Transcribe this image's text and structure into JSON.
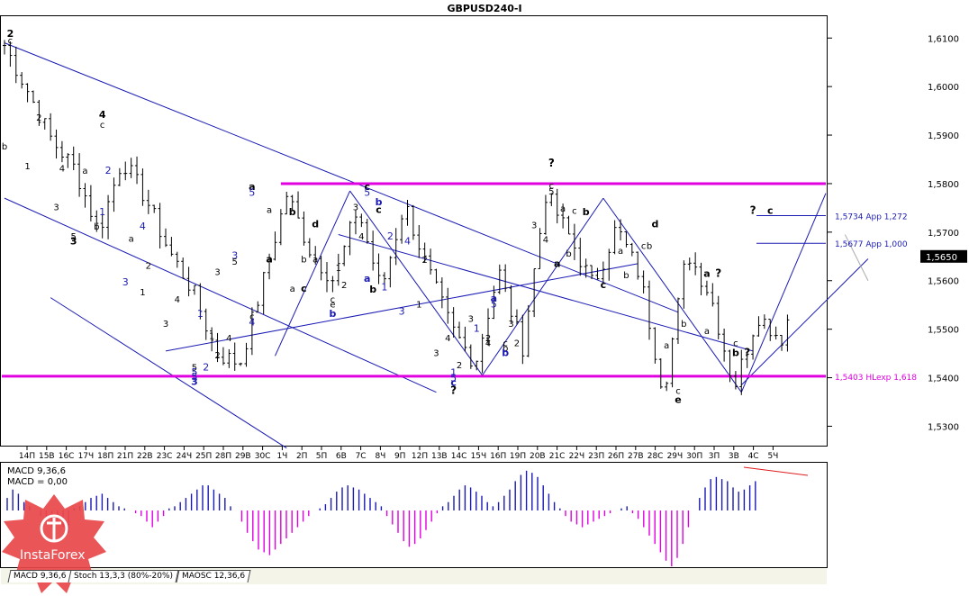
{
  "chart_data": {
    "type": "candlestick",
    "title": "GBPUSD240-I",
    "y_axis": {
      "min": 1.526,
      "max": 1.6145,
      "ticks": [
        "1,6100",
        "1,6000",
        "1,5900",
        "1,5800",
        "1,5700",
        "1,5600",
        "1,5500",
        "1,5400",
        "1,5300"
      ],
      "tick_values": [
        1.61,
        1.6,
        1.59,
        1.58,
        1.57,
        1.56,
        1.55,
        1.54,
        1.53
      ]
    },
    "x_axis": {
      "ticks": [
        "14П",
        "15В",
        "16С",
        "17Ч",
        "18П",
        "21П",
        "22В",
        "23С",
        "24Ч",
        "25П",
        "28П",
        "29В",
        "30С",
        "1Ч",
        "2П",
        "5П",
        "6В",
        "7С",
        "8Ч",
        "9П",
        "12П",
        "13В",
        "14С",
        "15Ч",
        "16П",
        "19П",
        "20В",
        "21С",
        "22Ч",
        "23П",
        "26П",
        "27В",
        "28С",
        "29Ч",
        "30П",
        "3П",
        "3В",
        "4С",
        "5Ч"
      ]
    },
    "current_price": {
      "label": "1,5650",
      "value": 1.565
    },
    "levels": [
      {
        "label": "1,5734 App 1,272",
        "value": 1.5734,
        "color": "#1a1ab4"
      },
      {
        "label": "1,5677 App 1,000",
        "value": 1.5677,
        "color": "#1a1ab4"
      },
      {
        "label": "1,5403 HLexp 1,618",
        "value": 1.5403,
        "color": "#e000e0"
      }
    ],
    "resistance_level": {
      "value": 1.58,
      "color": "#e000e0"
    },
    "price_path": [
      1.6085,
      1.599,
      1.589,
      1.583,
      1.57,
      1.585,
      1.577,
      1.566,
      1.558,
      1.545,
      1.543,
      1.56,
      1.578,
      1.566,
      1.56,
      1.575,
      1.558,
      1.576,
      1.562,
      1.55,
      1.543,
      1.562,
      1.546,
      1.578,
      1.569,
      1.559,
      1.571,
      1.561,
      1.537,
      1.566,
      1.557,
      1.538,
      1.553,
      1.548,
      1.563
    ],
    "wave_labels": [
      {
        "t": "2",
        "i": 1,
        "p": 1.6102,
        "s": "kb"
      },
      {
        "t": "c",
        "i": 1,
        "p": 1.6088,
        "s": "k"
      },
      {
        "t": "b",
        "i": 0,
        "p": 1.587,
        "s": "k"
      },
      {
        "t": "1",
        "i": 4,
        "p": 1.583,
        "s": "k"
      },
      {
        "t": "2",
        "i": 6,
        "p": 1.593,
        "s": "k"
      },
      {
        "t": "4",
        "i": 10,
        "p": 1.5825,
        "s": "k"
      },
      {
        "t": "3",
        "i": 9,
        "p": 1.5745,
        "s": "k"
      },
      {
        "t": "4",
        "i": 17,
        "p": 1.5935,
        "s": "kb"
      },
      {
        "t": "c",
        "i": 17,
        "p": 1.5915,
        "s": "k"
      },
      {
        "t": "a",
        "i": 14,
        "p": 1.582,
        "s": "k"
      },
      {
        "t": "2",
        "i": 18,
        "p": 1.582,
        "s": "b"
      },
      {
        "t": "1",
        "i": 17,
        "p": 1.5735,
        "s": "b"
      },
      {
        "t": "b",
        "i": 16,
        "p": 1.5705,
        "s": "k"
      },
      {
        "t": "5",
        "i": 12,
        "p": 1.5685,
        "s": "k"
      },
      {
        "t": "3",
        "i": 12,
        "p": 1.5675,
        "s": "kb"
      },
      {
        "t": "4",
        "i": 24,
        "p": 1.5705,
        "s": "b"
      },
      {
        "t": "a",
        "i": 22,
        "p": 1.568,
        "s": "k"
      },
      {
        "t": "3",
        "i": 21,
        "p": 1.559,
        "s": "b"
      },
      {
        "t": "1",
        "i": 24,
        "p": 1.557,
        "s": "k"
      },
      {
        "t": "2",
        "i": 25,
        "p": 1.5625,
        "s": "k"
      },
      {
        "t": "4",
        "i": 30,
        "p": 1.5555,
        "s": "k"
      },
      {
        "t": "3",
        "i": 28,
        "p": 1.5505,
        "s": "k"
      },
      {
        "t": "1",
        "i": 34,
        "p": 1.5525,
        "s": "b"
      },
      {
        "t": "1",
        "i": 36,
        "p": 1.548,
        "s": "k"
      },
      {
        "t": "2",
        "i": 37,
        "p": 1.544,
        "s": "k"
      },
      {
        "t": "5",
        "i": 33,
        "p": 1.5415,
        "s": "k"
      },
      {
        "t": "5",
        "i": 33,
        "p": 1.5405,
        "s": "b"
      },
      {
        "t": "2",
        "i": 35,
        "p": 1.5415,
        "s": "b"
      },
      {
        "t": "5",
        "i": 33,
        "p": 1.5395,
        "s": "b"
      },
      {
        "t": "3",
        "i": 33,
        "p": 1.5385,
        "s": "bb"
      },
      {
        "t": "3",
        "i": 37,
        "p": 1.5612,
        "s": "k"
      },
      {
        "t": "4",
        "i": 39,
        "p": 1.5475,
        "s": "k"
      },
      {
        "t": "3",
        "i": 40,
        "p": 1.5645,
        "s": "b"
      },
      {
        "t": "5",
        "i": 40,
        "p": 1.5633,
        "s": "k"
      },
      {
        "t": "c",
        "i": 43,
        "p": 1.552,
        "s": "k"
      },
      {
        "t": "4",
        "i": 43,
        "p": 1.5508,
        "s": "b"
      },
      {
        "t": "a",
        "i": 43,
        "p": 1.5787,
        "s": "kb"
      },
      {
        "t": "5",
        "i": 43,
        "p": 1.5775,
        "s": "b"
      },
      {
        "t": "a",
        "i": 46,
        "p": 1.574,
        "s": "k"
      },
      {
        "t": "b",
        "i": 50,
        "p": 1.5735,
        "s": "kb"
      },
      {
        "t": "d",
        "i": 54,
        "p": 1.571,
        "s": "kb"
      },
      {
        "t": "a",
        "i": 46,
        "p": 1.5638,
        "s": "kb"
      },
      {
        "t": "a",
        "i": 50,
        "p": 1.5577,
        "s": "k"
      },
      {
        "t": "c",
        "i": 52,
        "p": 1.5577,
        "s": "kb"
      },
      {
        "t": "b",
        "i": 52,
        "p": 1.5638,
        "s": "k"
      },
      {
        "t": "a",
        "i": 54,
        "p": 1.5638,
        "s": "k"
      },
      {
        "t": "c",
        "i": 57,
        "p": 1.5555,
        "s": "k"
      },
      {
        "t": "e",
        "i": 57,
        "p": 1.5545,
        "s": "k"
      },
      {
        "t": "b",
        "i": 57,
        "p": 1.5525,
        "s": "bb"
      },
      {
        "t": "1",
        "i": 58,
        "p": 1.562,
        "s": "k"
      },
      {
        "t": "2",
        "i": 59,
        "p": 1.5585,
        "s": "k"
      },
      {
        "t": "c",
        "i": 63,
        "p": 1.5787,
        "s": "kb"
      },
      {
        "t": "5",
        "i": 63,
        "p": 1.5775,
        "s": "b"
      },
      {
        "t": "3",
        "i": 61,
        "p": 1.5745,
        "s": "k"
      },
      {
        "t": "b",
        "i": 65,
        "p": 1.5755,
        "s": "bb"
      },
      {
        "t": "c",
        "i": 65,
        "p": 1.574,
        "s": "kb"
      },
      {
        "t": "4",
        "i": 62,
        "p": 1.5685,
        "s": "k"
      },
      {
        "t": "a",
        "i": 63,
        "p": 1.5598,
        "s": "bb"
      },
      {
        "t": "1",
        "i": 66,
        "p": 1.558,
        "s": "b"
      },
      {
        "t": "b",
        "i": 64,
        "p": 1.5575,
        "s": "kb"
      },
      {
        "t": "2",
        "i": 67,
        "p": 1.5685,
        "s": "b"
      },
      {
        "t": "4",
        "i": 70,
        "p": 1.5675,
        "s": "b"
      },
      {
        "t": "3",
        "i": 69,
        "p": 1.553,
        "s": "b"
      },
      {
        "t": "2",
        "i": 73,
        "p": 1.5637,
        "s": "k"
      },
      {
        "t": "1",
        "i": 72,
        "p": 1.5545,
        "s": "k"
      },
      {
        "t": "4",
        "i": 77,
        "p": 1.5475,
        "s": "k"
      },
      {
        "t": "3",
        "i": 75,
        "p": 1.5445,
        "s": "k"
      },
      {
        "t": "2",
        "i": 79,
        "p": 1.542,
        "s": "k"
      },
      {
        "t": "1",
        "i": 78,
        "p": 1.5404,
        "s": "b"
      },
      {
        "t": "5",
        "i": 78,
        "p": 1.5393,
        "s": "b"
      },
      {
        "t": "c",
        "i": 78,
        "p": 1.5383,
        "s": "bb"
      },
      {
        "t": "?",
        "i": 78,
        "p": 1.5367,
        "s": "q"
      },
      {
        "t": "3",
        "i": 81,
        "p": 1.5515,
        "s": "k"
      },
      {
        "t": "5",
        "i": 85,
        "p": 1.5545,
        "s": "b"
      },
      {
        "t": "a",
        "i": 85,
        "p": 1.5557,
        "s": "bb"
      },
      {
        "t": "1",
        "i": 82,
        "p": 1.5495,
        "s": "b"
      },
      {
        "t": "2",
        "i": 84,
        "p": 1.5475,
        "s": "k"
      },
      {
        "t": "4",
        "i": 84,
        "p": 1.5465,
        "s": "k"
      },
      {
        "t": "b",
        "i": 87,
        "p": 1.5455,
        "s": "k"
      },
      {
        "t": "c",
        "i": 87,
        "p": 1.5465,
        "s": "k"
      },
      {
        "t": "b",
        "i": 87,
        "p": 1.5445,
        "s": "bb"
      },
      {
        "t": "3",
        "i": 88,
        "p": 1.5505,
        "s": "k"
      },
      {
        "t": "2",
        "i": 89,
        "p": 1.5465,
        "s": "k"
      },
      {
        "t": "?",
        "i": 95,
        "p": 1.5835,
        "s": "q"
      },
      {
        "t": "c",
        "i": 95,
        "p": 1.579,
        "s": "k"
      },
      {
        "t": "5",
        "i": 95,
        "p": 1.5778,
        "s": "k"
      },
      {
        "t": "3",
        "i": 92,
        "p": 1.5708,
        "s": "k"
      },
      {
        "t": "4",
        "i": 94,
        "p": 1.5678,
        "s": "k"
      },
      {
        "t": "a",
        "i": 97,
        "p": 1.5742,
        "s": "k"
      },
      {
        "t": "c",
        "i": 99,
        "p": 1.5738,
        "s": "k"
      },
      {
        "t": "b",
        "i": 101,
        "p": 1.5735,
        "s": "kb"
      },
      {
        "t": "a",
        "i": 96,
        "p": 1.5628,
        "s": "kb"
      },
      {
        "t": "b",
        "i": 98,
        "p": 1.565,
        "s": "k"
      },
      {
        "t": "c",
        "i": 104,
        "p": 1.5585,
        "s": "kb"
      },
      {
        "t": "b",
        "i": 108,
        "p": 1.5605,
        "s": "k"
      },
      {
        "t": "a",
        "i": 107,
        "p": 1.5655,
        "s": "k"
      },
      {
        "t": "d",
        "i": 113,
        "p": 1.571,
        "s": "kb"
      },
      {
        "t": "c",
        "i": 111,
        "p": 1.5665,
        "s": "k"
      },
      {
        "t": "b",
        "i": 112,
        "p": 1.5665,
        "s": "k"
      },
      {
        "t": "a",
        "i": 115,
        "p": 1.546,
        "s": "k"
      },
      {
        "t": "b",
        "i": 118,
        "p": 1.5505,
        "s": "k"
      },
      {
        "t": "c",
        "i": 117,
        "p": 1.5367,
        "s": "k"
      },
      {
        "t": "e",
        "i": 117,
        "p": 1.5348,
        "s": "kb"
      },
      {
        "t": "a",
        "i": 122,
        "p": 1.5608,
        "s": "kb"
      },
      {
        "t": "?",
        "i": 124,
        "p": 1.5608,
        "s": "q"
      },
      {
        "t": "a",
        "i": 122,
        "p": 1.549,
        "s": "k"
      },
      {
        "t": "c",
        "i": 127,
        "p": 1.5465,
        "s": "k"
      },
      {
        "t": "b",
        "i": 127,
        "p": 1.5445,
        "s": "kb"
      },
      {
        "t": "?",
        "i": 129,
        "p": 1.5445,
        "s": "q"
      },
      {
        "t": "?",
        "i": 130,
        "p": 1.5738,
        "s": "q"
      },
      {
        "t": "c",
        "i": 133,
        "p": 1.5738,
        "s": "kb"
      }
    ]
  },
  "indicator": {
    "name": "MACD 9,36,6",
    "value_label": "MACD = 0,00",
    "histogram": [
      0.3,
      0.5,
      0.4,
      0.2,
      0.1,
      0,
      -0.1,
      -0.2,
      -0.3,
      -0.2,
      -0.3,
      -0.4,
      0.05,
      0.1,
      0.2,
      0.3,
      0.35,
      0.4,
      0.3,
      0.2,
      0.1,
      0.05,
      0,
      -0.05,
      -0.1,
      -0.2,
      -0.3,
      -0.2,
      -0.1,
      0.05,
      0.1,
      0.2,
      0.3,
      0.4,
      0.5,
      0.6,
      0.6,
      0.5,
      0.4,
      0.3,
      0.1,
      0,
      -0.2,
      -0.4,
      -0.55,
      -0.7,
      -0.75,
      -0.8,
      -0.7,
      -0.6,
      -0.5,
      -0.4,
      -0.3,
      -0.2,
      -0.1,
      0,
      0.05,
      0.15,
      0.3,
      0.45,
      0.55,
      0.6,
      0.55,
      0.5,
      0.4,
      0.3,
      0.2,
      0.1,
      -0.1,
      -0.25,
      -0.4,
      -0.55,
      -0.65,
      -0.6,
      -0.5,
      -0.35,
      -0.2,
      -0.05,
      0.1,
      0.2,
      0.35,
      0.5,
      0.6,
      0.55,
      0.45,
      0.35,
      0.2,
      0.1,
      0.2,
      0.35,
      0.5,
      0.7,
      0.85,
      0.95,
      0.9,
      0.8,
      0.6,
      0.4,
      0.2,
      0.05,
      -0.1,
      -0.2,
      -0.25,
      -0.3,
      -0.25,
      -0.2,
      -0.15,
      -0.1,
      -0.05,
      0,
      0.05,
      0.1,
      -0.05,
      -0.15,
      -0.3,
      -0.45,
      -0.6,
      -0.75,
      -0.9,
      -1.0,
      -0.85,
      -0.6,
      -0.3,
      0,
      0.3,
      0.55,
      0.75,
      0.8,
      0.75,
      0.7,
      0.55,
      0.45,
      0.5,
      0.6,
      0.7
    ],
    "tabs": [
      "MACD 9,36,6",
      "Stoch 13,3,3 (80%-20%)",
      "MAOSC 12,36,6"
    ]
  },
  "brand": {
    "logo_text": "InstaForex",
    "logo_color": "#e8464a"
  },
  "colors": {
    "bearish_channel": "#1a1ab4",
    "horizontal_levels": "#e000e0",
    "macd_positive": "#1a1ab4",
    "macd_negative": "#e000e0",
    "divergence_line": "#e01a1a"
  }
}
